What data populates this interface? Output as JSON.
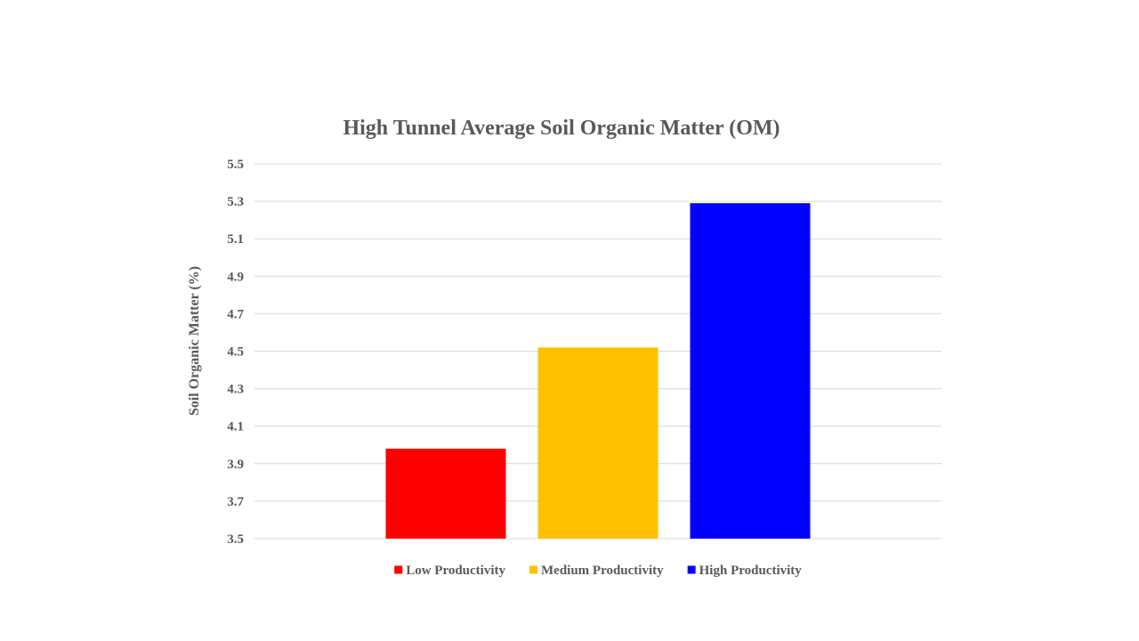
{
  "chart_data": {
    "type": "bar",
    "title": "High Tunnel Average Soil Organic Matter (OM)",
    "xlabel": "",
    "ylabel": "Soil Organic Matter (%)",
    "ylim": [
      3.5,
      5.5
    ],
    "yticks": [
      "3.5",
      "3.7",
      "3.9",
      "4.1",
      "4.3",
      "4.5",
      "4.7",
      "4.9",
      "5.1",
      "5.3",
      "5.5"
    ],
    "grid": true,
    "legend_position": "bottom",
    "series": [
      {
        "name": "Low Productivity",
        "values": [
          3.98
        ],
        "color": "#ff0000"
      },
      {
        "name": "Medium Productivity",
        "values": [
          4.52
        ],
        "color": "#ffc000"
      },
      {
        "name": "High Productivity",
        "values": [
          5.29
        ],
        "color": "#0000ff"
      }
    ]
  }
}
